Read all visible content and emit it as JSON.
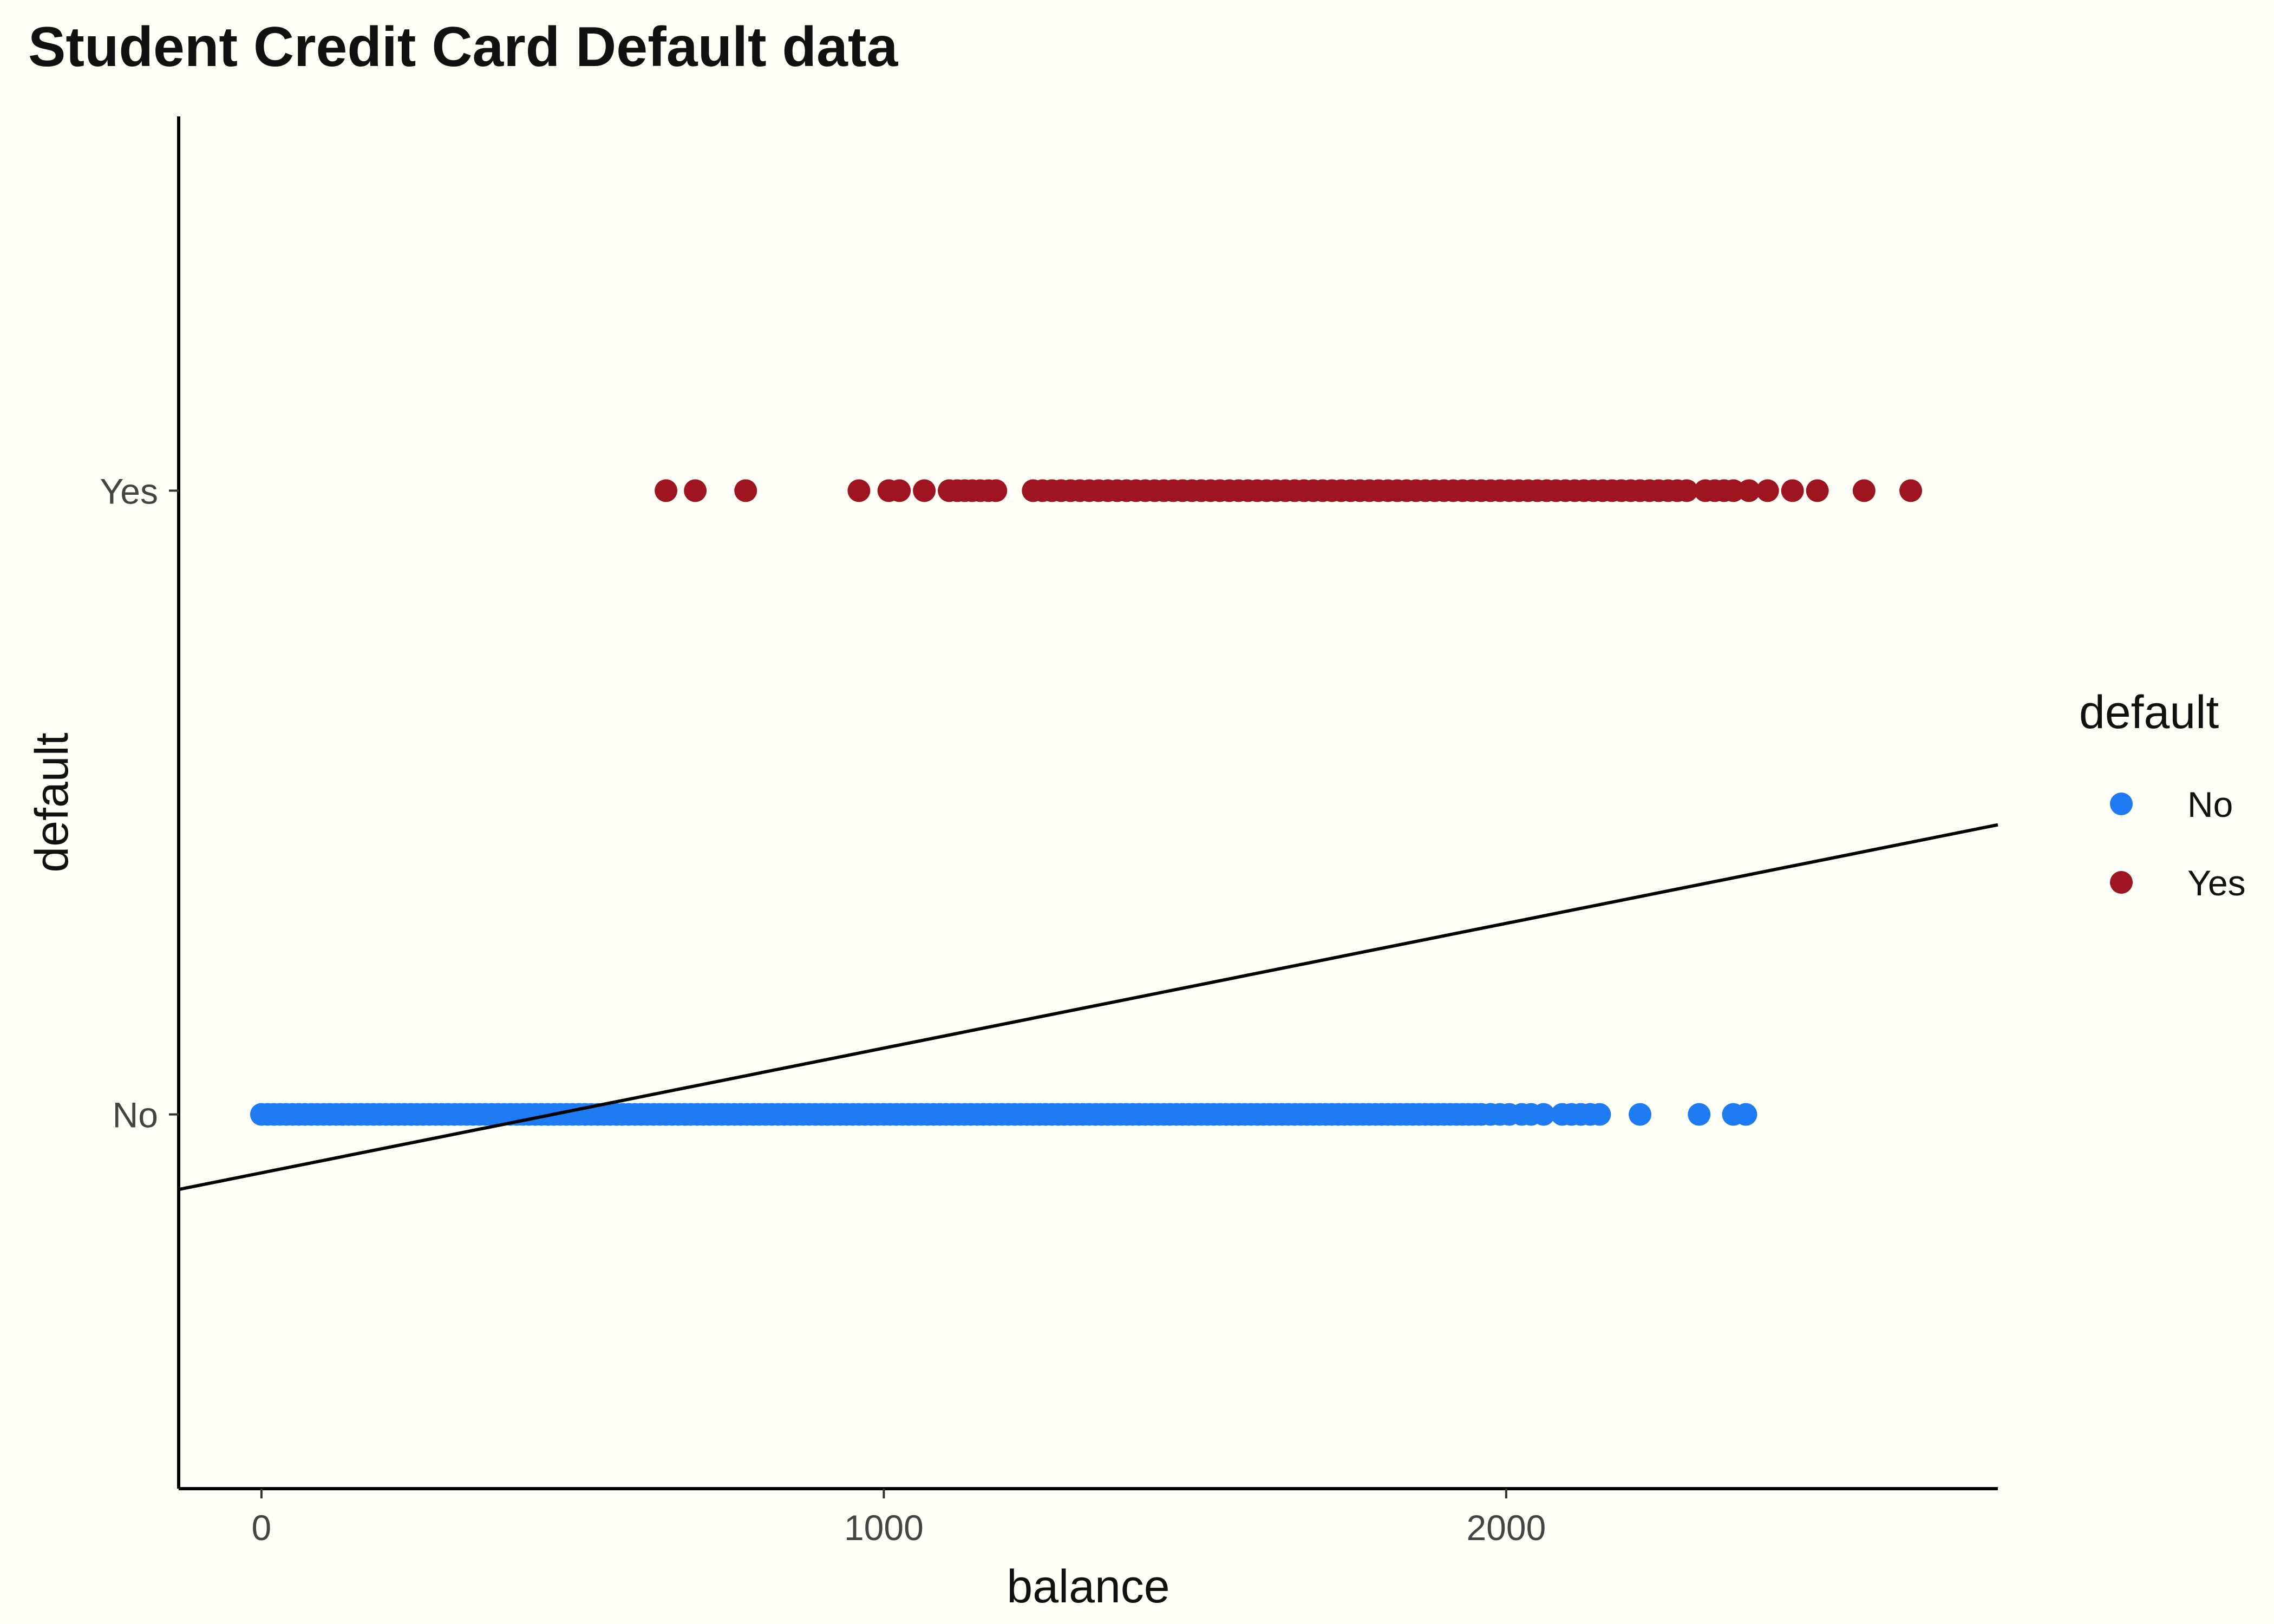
{
  "chart_data": {
    "type": "scatter",
    "title": "Student Credit Card Default data",
    "xlabel": "balance",
    "ylabel": "default",
    "x_ticks": [
      0,
      1000,
      2000
    ],
    "x_tick_labels": [
      "0",
      "1000",
      "2000"
    ],
    "xlim": [
      -133,
      2790
    ],
    "y_categories": [
      "No",
      "Yes"
    ],
    "ylim": [
      -0.6,
      1.6
    ],
    "grid": false,
    "legend": {
      "title": "default",
      "position": "right",
      "entries": [
        "No",
        "Yes"
      ]
    },
    "colors": {
      "No": "#1f7bf4",
      "Yes": "#9e1520"
    },
    "series": [
      {
        "name": "No",
        "y": 0,
        "x": [
          0,
          10,
          20,
          30,
          40,
          50,
          60,
          70,
          80,
          90,
          100,
          110,
          120,
          130,
          140,
          150,
          160,
          170,
          180,
          190,
          200,
          210,
          220,
          230,
          240,
          250,
          260,
          270,
          280,
          290,
          300,
          310,
          320,
          330,
          340,
          350,
          360,
          370,
          380,
          390,
          400,
          410,
          420,
          430,
          440,
          450,
          460,
          470,
          480,
          490,
          500,
          510,
          520,
          530,
          540,
          550,
          560,
          570,
          580,
          590,
          600,
          610,
          620,
          630,
          640,
          650,
          660,
          670,
          680,
          690,
          700,
          710,
          720,
          730,
          740,
          750,
          760,
          770,
          780,
          790,
          800,
          810,
          820,
          830,
          840,
          850,
          860,
          870,
          880,
          890,
          900,
          910,
          920,
          930,
          940,
          950,
          960,
          970,
          980,
          990,
          1000,
          1010,
          1020,
          1030,
          1040,
          1050,
          1060,
          1070,
          1080,
          1090,
          1100,
          1110,
          1120,
          1130,
          1140,
          1150,
          1160,
          1170,
          1180,
          1190,
          1200,
          1210,
          1220,
          1230,
          1240,
          1250,
          1260,
          1270,
          1280,
          1290,
          1300,
          1310,
          1320,
          1330,
          1340,
          1350,
          1360,
          1370,
          1380,
          1390,
          1400,
          1410,
          1420,
          1430,
          1440,
          1450,
          1460,
          1470,
          1480,
          1490,
          1500,
          1510,
          1520,
          1530,
          1540,
          1550,
          1560,
          1570,
          1580,
          1590,
          1600,
          1610,
          1620,
          1630,
          1640,
          1650,
          1660,
          1670,
          1680,
          1690,
          1700,
          1710,
          1720,
          1730,
          1740,
          1750,
          1760,
          1770,
          1780,
          1790,
          1800,
          1810,
          1820,
          1830,
          1840,
          1850,
          1860,
          1870,
          1880,
          1890,
          1900,
          1910,
          1920,
          1930,
          1940,
          1950,
          1960,
          1975,
          1990,
          2005,
          2025,
          2040,
          2060,
          2090,
          2105,
          2120,
          2135,
          2150,
          2215,
          2310,
          2365,
          2385
        ]
      },
      {
        "name": "Yes",
        "y": 1,
        "x": [
          650,
          697,
          778,
          960,
          1008,
          1025,
          1065,
          1105,
          1118,
          1130,
          1142,
          1155,
          1168,
          1180,
          1240,
          1255,
          1270,
          1285,
          1300,
          1315,
          1330,
          1345,
          1360,
          1375,
          1390,
          1405,
          1420,
          1435,
          1450,
          1465,
          1480,
          1495,
          1510,
          1525,
          1540,
          1555,
          1570,
          1585,
          1600,
          1615,
          1630,
          1645,
          1660,
          1675,
          1690,
          1705,
          1720,
          1735,
          1750,
          1765,
          1780,
          1795,
          1810,
          1825,
          1840,
          1855,
          1870,
          1885,
          1900,
          1915,
          1930,
          1945,
          1960,
          1975,
          1990,
          2005,
          2020,
          2035,
          2050,
          2065,
          2080,
          2095,
          2110,
          2125,
          2140,
          2155,
          2170,
          2185,
          2200,
          2215,
          2230,
          2245,
          2260,
          2275,
          2290,
          2320,
          2335,
          2350,
          2365,
          2390,
          2420,
          2460,
          2500,
          2575,
          2650
        ]
      }
    ],
    "fit_line": {
      "intercept": -0.0937,
      "slope": 0.0002
    }
  }
}
